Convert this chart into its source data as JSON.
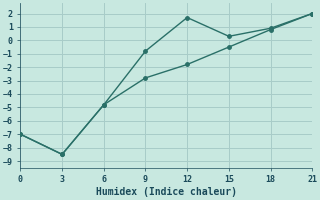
{
  "xlabel": "Humidex (Indice chaleur)",
  "bg_color": "#c8e8e0",
  "grid_color": "#a8ccc8",
  "line_color": "#2a7068",
  "line1_x": [
    0,
    3,
    6,
    9,
    12,
    15,
    18,
    21
  ],
  "line1_y": [
    -7.0,
    -8.5,
    -4.8,
    -0.8,
    1.7,
    0.3,
    0.9,
    2.0
  ],
  "line2_x": [
    0,
    3,
    6,
    9,
    12,
    15,
    18,
    21
  ],
  "line2_y": [
    -7.0,
    -8.5,
    -4.8,
    -2.8,
    -1.8,
    -0.5,
    0.8,
    2.0
  ],
  "xlim": [
    0,
    21
  ],
  "ylim": [
    -9.5,
    2.8
  ],
  "xticks": [
    0,
    3,
    6,
    9,
    12,
    15,
    18,
    21
  ],
  "yticks": [
    -9,
    -8,
    -7,
    -6,
    -5,
    -4,
    -3,
    -2,
    -1,
    0,
    1,
    2
  ]
}
